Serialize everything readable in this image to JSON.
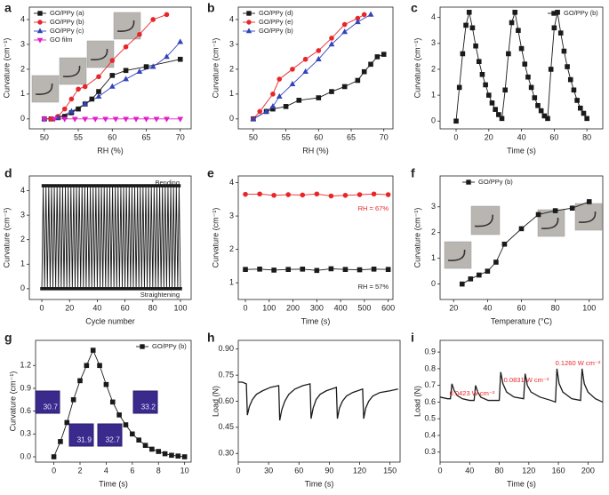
{
  "chart_data": [
    {
      "type": "line",
      "panel": "a",
      "xlabel": "RH (%)",
      "ylabel": "Curvature (cm⁻¹)",
      "xlim": [
        47.8,
        71.6
      ],
      "ylim": [
        -0.4,
        4.5
      ],
      "xticks": [
        50,
        55,
        60,
        65,
        70
      ],
      "yticks": [
        0,
        1,
        2,
        3,
        4
      ],
      "legend": "upper left",
      "series": [
        {
          "name": "GO/PPy (a)",
          "color": "#1a1a1a",
          "marker": "square",
          "x": [
            50,
            51,
            52,
            53,
            54,
            55,
            56,
            57,
            58,
            60,
            62,
            65,
            70
          ],
          "values": [
            0,
            0,
            0.05,
            0.1,
            0.25,
            0.4,
            0.6,
            0.8,
            1.1,
            1.75,
            1.95,
            2.1,
            2.4
          ]
        },
        {
          "name": "GO/PPy (b)",
          "color": "#e8262a",
          "marker": "circle",
          "x": [
            50,
            51,
            52,
            53,
            54,
            55,
            56,
            58,
            60,
            62,
            64,
            66,
            68
          ],
          "values": [
            0,
            0,
            0.1,
            0.4,
            0.8,
            1.2,
            1.3,
            1.7,
            2.35,
            2.9,
            3.4,
            4.0,
            4.2
          ]
        },
        {
          "name": "GO/PPy (c)",
          "color": "#3344bb",
          "marker": "triangle",
          "x": [
            50,
            52,
            54,
            56,
            58,
            60,
            62,
            64,
            66,
            68,
            70
          ],
          "values": [
            0,
            0.05,
            0.3,
            0.6,
            0.9,
            1.3,
            1.6,
            1.9,
            2.1,
            2.5,
            3.1
          ]
        },
        {
          "name": "GO film",
          "color": "#e020c8",
          "marker": "triangle-down",
          "x": [
            50,
            51.5,
            53,
            54.5,
            56,
            57.5,
            59,
            60.5,
            62,
            63.5,
            65,
            66.5,
            68,
            70
          ],
          "values": [
            0,
            0,
            0,
            0,
            0,
            0,
            0,
            0,
            0,
            0,
            0,
            0,
            0,
            0
          ]
        }
      ]
    },
    {
      "type": "line",
      "panel": "b",
      "xlabel": "RH (%)",
      "ylabel": "Curvature (cm⁻¹)",
      "xlim": [
        47.7,
        71.4
      ],
      "ylim": [
        -0.4,
        4.5
      ],
      "xticks": [
        50,
        55,
        60,
        65,
        70
      ],
      "yticks": [
        0,
        1,
        2,
        3,
        4
      ],
      "legend": "upper left",
      "series": [
        {
          "name": "GO/PPy (d)",
          "color": "#1a1a1a",
          "marker": "square",
          "x": [
            50,
            52,
            53,
            55,
            57,
            60,
            62,
            64,
            66,
            67,
            68,
            69,
            70
          ],
          "values": [
            0,
            0.3,
            0.4,
            0.5,
            0.75,
            0.85,
            1.1,
            1.3,
            1.55,
            1.9,
            2.2,
            2.5,
            2.6
          ]
        },
        {
          "name": "GO/PPy (e)",
          "color": "#e8262a",
          "marker": "circle",
          "x": [
            50,
            51,
            53,
            54,
            56,
            58,
            60,
            62,
            64,
            66,
            67
          ],
          "values": [
            0,
            0.3,
            1.0,
            1.6,
            2.0,
            2.4,
            2.75,
            3.25,
            3.8,
            4.05,
            4.2
          ]
        },
        {
          "name": "GO/PPy (b)",
          "color": "#3344bb",
          "marker": "triangle",
          "x": [
            50,
            52,
            53,
            54,
            56,
            58,
            60,
            62,
            64,
            66,
            68
          ],
          "values": [
            0,
            0.3,
            0.5,
            0.9,
            1.4,
            1.9,
            2.4,
            3.0,
            3.5,
            3.9,
            4.2
          ]
        }
      ]
    },
    {
      "type": "line",
      "panel": "c",
      "xlabel": "Time (s)",
      "ylabel": "Curvature (cm⁻¹)",
      "xlim": [
        -9.8,
        89.7
      ],
      "ylim": [
        -0.3,
        4.4
      ],
      "xticks": [
        0,
        20,
        40,
        60,
        80
      ],
      "yticks": [
        0,
        1,
        2,
        3,
        4
      ],
      "legend": "upper right",
      "series": [
        {
          "name": "GO/PPy (b)",
          "color": "#1a1a1a",
          "marker": "square",
          "x": [
            0,
            2,
            4,
            6,
            8,
            10,
            12,
            14,
            16,
            18,
            20,
            22,
            24,
            26,
            28,
            30,
            32,
            34,
            36,
            38,
            40,
            42,
            44,
            46,
            48,
            50,
            52,
            54,
            56,
            58,
            60,
            62,
            64,
            66,
            68,
            70,
            72,
            74,
            76,
            78,
            80
          ],
          "values": [
            0,
            1.3,
            2.6,
            3.7,
            4.2,
            3.6,
            2.9,
            2.3,
            1.8,
            1.4,
            1.0,
            0.7,
            0.45,
            0.25,
            0.1,
            1.2,
            2.6,
            3.8,
            4.2,
            3.5,
            2.8,
            2.2,
            1.7,
            1.3,
            0.9,
            0.6,
            0.4,
            0.2,
            0.1,
            2.0,
            3.6,
            4.2,
            3.4,
            2.7,
            2.1,
            1.6,
            1.2,
            0.8,
            0.5,
            0.3,
            0.1
          ]
        }
      ]
    },
    {
      "type": "line",
      "panel": "d",
      "xlabel": "Cycle number",
      "ylabel": "Curvature (cm⁻¹)",
      "xlim": [
        -9,
        107.7
      ],
      "ylim": [
        -0.44,
        4.6
      ],
      "xticks": [
        0,
        20,
        40,
        60,
        80,
        100
      ],
      "yticks": [
        0,
        1,
        2,
        3,
        4
      ],
      "legend": "none",
      "annotations": [
        "Bending",
        "Straightening"
      ],
      "series": [
        {
          "color": "#1a1a1a",
          "marker": "square",
          "x": [
            0,
            1,
            2,
            3,
            4,
            5,
            6,
            7,
            8,
            9,
            10,
            11,
            12,
            13,
            14,
            15,
            16,
            17,
            18,
            19,
            20,
            21,
            22,
            23,
            24,
            25,
            26,
            27,
            28,
            29,
            30,
            31,
            32,
            33,
            34,
            35,
            36,
            37,
            38,
            39,
            40,
            41,
            42,
            43,
            44,
            45,
            46,
            47,
            48,
            49,
            50,
            51,
            52,
            53,
            54,
            55,
            56,
            57,
            58,
            59,
            60,
            61,
            62,
            63,
            64,
            65,
            66,
            67,
            68,
            69,
            70,
            71,
            72,
            73,
            74,
            75,
            76,
            77,
            78,
            79,
            80,
            81,
            82,
            83,
            84,
            85,
            86,
            87,
            88,
            89,
            90,
            91,
            92,
            93,
            94,
            95,
            96,
            97,
            98,
            99,
            100
          ],
          "values": [
            0,
            4.2,
            0,
            4.2,
            0,
            4.2,
            0,
            4.2,
            0,
            4.2,
            0,
            4.2,
            0,
            4.2,
            0,
            4.2,
            0,
            4.2,
            0,
            4.2,
            0,
            4.2,
            0,
            4.2,
            0,
            4.2,
            0,
            4.2,
            0,
            4.2,
            0,
            4.2,
            0,
            4.2,
            0,
            4.2,
            0,
            4.2,
            0,
            4.2,
            0,
            4.2,
            0,
            4.2,
            0,
            4.2,
            0,
            4.2,
            0,
            4.2,
            0,
            4.2,
            0,
            4.2,
            0,
            4.2,
            0,
            4.2,
            0,
            4.2,
            0,
            4.2,
            0,
            4.2,
            0,
            4.2,
            0,
            4.2,
            0,
            4.2,
            0,
            4.2,
            0,
            4.2,
            0,
            4.2,
            0,
            4.2,
            0,
            4.2,
            0,
            4.2,
            0,
            4.2,
            0,
            4.2,
            0,
            4.2,
            0,
            4.2,
            0,
            4.2,
            0,
            4.2,
            0,
            4.2,
            0,
            4.2,
            0,
            4.2,
            0
          ]
        }
      ]
    },
    {
      "type": "line",
      "panel": "e",
      "xlabel": "Time (s)",
      "ylabel": "Curvature (cm⁻¹)",
      "xlim": [
        -30,
        620
      ],
      "ylim": [
        0.5,
        4.2
      ],
      "xticks": [
        0,
        100,
        200,
        300,
        400,
        500,
        600
      ],
      "yticks": [
        1,
        2,
        3,
        4
      ],
      "legend": "none",
      "annotations": [
        "RH = 67%",
        "RH = 57%"
      ],
      "series": [
        {
          "color": "#e8262a",
          "marker": "circle",
          "x": [
            0,
            60,
            120,
            180,
            240,
            300,
            360,
            420,
            480,
            540,
            600
          ],
          "values": [
            3.65,
            3.66,
            3.62,
            3.64,
            3.63,
            3.66,
            3.6,
            3.62,
            3.64,
            3.66,
            3.64
          ]
        },
        {
          "color": "#1a1a1a",
          "marker": "square",
          "x": [
            0,
            60,
            120,
            180,
            240,
            300,
            360,
            420,
            480,
            540,
            600
          ],
          "values": [
            1.4,
            1.41,
            1.38,
            1.4,
            1.41,
            1.37,
            1.42,
            1.4,
            1.39,
            1.41,
            1.4
          ]
        }
      ]
    },
    {
      "type": "line",
      "panel": "f",
      "xlabel": "Temperature (°C)",
      "ylabel": "Curvature (cm⁻¹)",
      "xlim": [
        12,
        108
      ],
      "ylim": [
        -0.6,
        4.2
      ],
      "xticks": [
        20,
        40,
        60,
        80,
        100
      ],
      "yticks": [
        0,
        1,
        2,
        3
      ],
      "legend": "upper left",
      "series": [
        {
          "name": "GO/PPy (b)",
          "color": "#1a1a1a",
          "marker": "square",
          "x": [
            25,
            30,
            35,
            40,
            45,
            50,
            60,
            70,
            80,
            90,
            100
          ],
          "values": [
            0,
            0.2,
            0.35,
            0.5,
            0.85,
            1.55,
            2.15,
            2.7,
            2.85,
            2.95,
            3.2
          ]
        }
      ]
    },
    {
      "type": "line",
      "panel": "g",
      "xlabel": "Time (s)",
      "ylabel": "Curvature (cm⁻¹)",
      "xlim": [
        -1.4,
        10.5
      ],
      "ylim": [
        -0.07,
        1.53
      ],
      "xticks": [
        0,
        2,
        4,
        6,
        8,
        10
      ],
      "yticks": [
        {
          "value": 0,
          "label": "0.0"
        },
        0.3,
        0.6,
        0.9,
        1.2
      ],
      "legend": "upper right",
      "annotations": [
        "30.7",
        "31.9",
        "32.7",
        "33.2"
      ],
      "series": [
        {
          "name": "GO/PPy (b)",
          "color": "#1a1a1a",
          "marker": "square",
          "x": [
            0,
            0.5,
            1,
            1.5,
            2,
            2.5,
            3,
            3.5,
            4,
            4.5,
            5,
            5.5,
            6,
            6.5,
            7,
            7.5,
            8,
            8.5,
            9,
            9.5,
            10
          ],
          "values": [
            0,
            0.2,
            0.45,
            0.75,
            1.0,
            1.2,
            1.4,
            1.2,
            0.95,
            0.72,
            0.55,
            0.42,
            0.3,
            0.22,
            0.15,
            0.1,
            0.07,
            0.04,
            0.02,
            0.01,
            0
          ]
        }
      ]
    },
    {
      "type": "line",
      "panel": "h",
      "xlabel": "Time (s)",
      "ylabel": "Load (N)",
      "xlim": [
        0,
        160
      ],
      "ylim": [
        0.25,
        0.95
      ],
      "xticks": [
        0,
        30,
        60,
        90,
        120,
        150
      ],
      "yticks": [
        {
          "value": 0.3,
          "label": "0.30"
        },
        0.45,
        {
          "value": 0.6,
          "label": "0.60"
        },
        0.75,
        {
          "value": 0.9,
          "label": "0.90"
        }
      ],
      "legend": "none",
      "series": [
        {
          "color": "#1a1a1a",
          "marker": "none",
          "x": [
            0,
            4,
            8,
            9,
            11,
            14,
            18,
            24,
            32,
            40,
            41,
            43,
            46,
            50,
            56,
            64,
            71,
            72,
            74,
            77,
            81,
            87,
            97,
            98,
            100,
            103,
            107,
            113,
            123,
            124,
            126,
            129,
            133,
            140,
            150,
            158
          ],
          "values": [
            0.71,
            0.71,
            0.7,
            0.52,
            0.57,
            0.61,
            0.64,
            0.66,
            0.68,
            0.69,
            0.49,
            0.55,
            0.6,
            0.64,
            0.67,
            0.69,
            0.7,
            0.5,
            0.56,
            0.61,
            0.64,
            0.66,
            0.68,
            0.5,
            0.56,
            0.6,
            0.63,
            0.65,
            0.67,
            0.5,
            0.56,
            0.6,
            0.63,
            0.65,
            0.66,
            0.67
          ]
        }
      ]
    },
    {
      "type": "line",
      "panel": "i",
      "xlabel": "Time (s)",
      "ylabel": "Load (N)",
      "xlim": [
        0,
        220
      ],
      "ylim": [
        0.24,
        0.97
      ],
      "xticks": [
        0,
        40,
        80,
        120,
        160,
        200
      ],
      "yticks": [
        0.3,
        0.4,
        0.5,
        0.6,
        0.7,
        0.8,
        0.9
      ],
      "legend": "none",
      "annotations": [
        "0.0423 W cm⁻²",
        "0.0831 W cm⁻²",
        "0.1260 W cm⁻²"
      ],
      "series": [
        {
          "color": "#1a1a1a",
          "marker": "none",
          "x": [
            0,
            10,
            14,
            16,
            19,
            23,
            30,
            40,
            46,
            48,
            51,
            55,
            65,
            80,
            82,
            85,
            90,
            100,
            113,
            115,
            118,
            123,
            135,
            150,
            156,
            158,
            161,
            166,
            178,
            190,
            192,
            195,
            200,
            210,
            220
          ],
          "values": [
            0.63,
            0.62,
            0.62,
            0.71,
            0.67,
            0.64,
            0.62,
            0.61,
            0.61,
            0.7,
            0.66,
            0.63,
            0.61,
            0.61,
            0.78,
            0.71,
            0.66,
            0.63,
            0.62,
            0.77,
            0.7,
            0.66,
            0.63,
            0.61,
            0.6,
            0.8,
            0.71,
            0.66,
            0.62,
            0.61,
            0.8,
            0.71,
            0.66,
            0.62,
            0.6
          ]
        }
      ]
    }
  ]
}
